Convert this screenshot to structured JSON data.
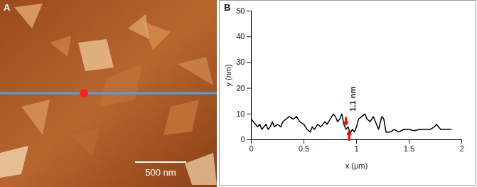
{
  "image_panel": {
    "label": "A",
    "scale_bar": "500 nm"
  },
  "chart_data": {
    "type": "line",
    "title": "B",
    "x": [
      0,
      0.02,
      0.04,
      0.06,
      0.08,
      0.1,
      0.12,
      0.14,
      0.16,
      0.18,
      0.2,
      0.22,
      0.25,
      0.28,
      0.3,
      0.33,
      0.36,
      0.4,
      0.43,
      0.46,
      0.5,
      0.53,
      0.56,
      0.58,
      0.6,
      0.63,
      0.66,
      0.7,
      0.72,
      0.75,
      0.78,
      0.8,
      0.82,
      0.84,
      0.86,
      0.88,
      0.9,
      0.92,
      0.94,
      0.96,
      0.98,
      1.0,
      1.02,
      1.05,
      1.08,
      1.1,
      1.13,
      1.16,
      1.19,
      1.21,
      1.24,
      1.26,
      1.28,
      1.32,
      1.36,
      1.4,
      1.45,
      1.5,
      1.55,
      1.6,
      1.65,
      1.7,
      1.74,
      1.76,
      1.8,
      1.85,
      1.9
    ],
    "values": [
      8,
      7,
      6,
      5,
      6,
      4,
      5,
      6,
      4,
      5,
      7,
      5,
      6,
      5,
      7,
      8,
      9,
      8,
      9,
      7,
      6,
      4,
      3,
      5,
      4,
      6,
      5,
      7,
      6,
      8,
      10,
      9,
      7,
      8,
      10,
      6,
      4,
      5,
      2.5,
      4,
      3,
      5,
      8,
      9,
      10,
      8,
      7,
      9,
      6,
      4,
      9,
      8,
      3,
      3,
      4,
      3,
      4,
      4,
      3.5,
      4,
      4,
      4,
      5,
      6,
      4,
      4,
      4
    ],
    "color": "#000000",
    "xlabel": "x (µm)",
    "ylabel": "y (nm)",
    "xlim": [
      0,
      2
    ],
    "xticks": [
      0,
      0.5,
      1,
      1.5,
      2
    ],
    "ylim": [
      0,
      50
    ],
    "yticks": [
      0,
      10,
      20,
      30,
      40,
      50
    ],
    "grid": false,
    "annotations": [
      {
        "text": "1.1 nm",
        "x": 0.965,
        "y": 11,
        "color": "#ff0000",
        "arrows": [
          {
            "x": 0.9,
            "y1": 8.5,
            "y2": 6
          },
          {
            "x": 0.93,
            "y1": 0,
            "y2": 3
          }
        ]
      }
    ]
  }
}
